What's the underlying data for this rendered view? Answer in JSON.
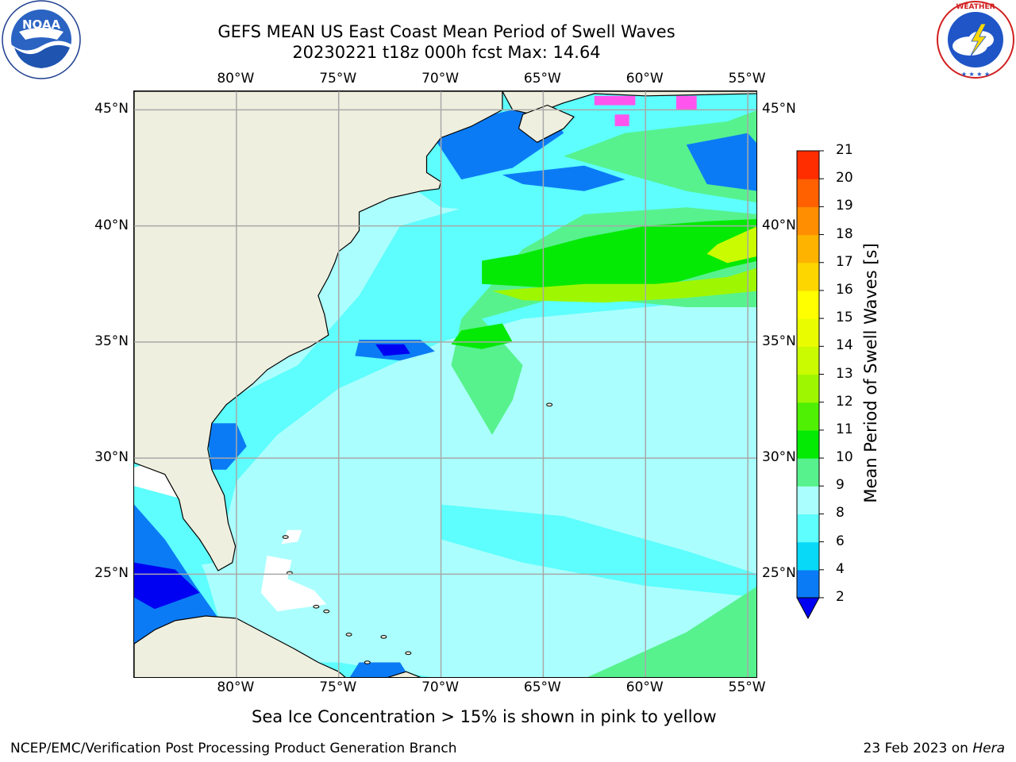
{
  "title_line1": "GEFS MEAN US East Coast Mean Period of Swell Waves",
  "title_line2": "20230221 t18z 000h fcst   Max: 14.64",
  "logos": {
    "left": {
      "name": "NOAA",
      "text": "NOAA",
      "ring_text": "NATIONAL OCEANIC AND ATMOSPHERIC ADMINISTRATION · U.S. DEPARTMENT OF COMMERCE"
    },
    "right": {
      "name": "National Weather Service",
      "ring_text": "NATIONAL WEATHER SERVICE"
    }
  },
  "map": {
    "lon_min": -85,
    "lon_max": -54.5,
    "lat_min": 20.5,
    "lat_max": 45.8,
    "lon_ticks": [
      {
        "value": -80,
        "label": "80°W"
      },
      {
        "value": -75,
        "label": "75°W"
      },
      {
        "value": -70,
        "label": "70°W"
      },
      {
        "value": -65,
        "label": "65°W"
      },
      {
        "value": -60,
        "label": "60°W"
      },
      {
        "value": -55,
        "label": "55°W"
      }
    ],
    "lat_ticks": [
      {
        "value": 45,
        "label": "45°N"
      },
      {
        "value": 40,
        "label": "40°N"
      },
      {
        "value": 35,
        "label": "35°N"
      },
      {
        "value": 30,
        "label": "30°N"
      },
      {
        "value": 25,
        "label": "25°N"
      }
    ],
    "grid": true,
    "colors": {
      "land": "#efefdf",
      "ocean_base": "#aafffe",
      "coast": "#000000",
      "grid": "#a8a8a8"
    }
  },
  "colorbar": {
    "label": "Mean Period of Swell Waves [s]",
    "ticks": [
      "2",
      "4",
      "6",
      "8",
      "9",
      "10",
      "11",
      "12",
      "13",
      "14",
      "15",
      "16",
      "17",
      "18",
      "19",
      "20",
      "21"
    ],
    "colors": [
      "#0b7bf5",
      "#07d9f7",
      "#5dfefd",
      "#aafffe",
      "#57f28e",
      "#05ea05",
      "#4ff003",
      "#9ef701",
      "#cafb00",
      "#eafc00",
      "#ffff00",
      "#fdd600",
      "#fdb300",
      "#ff8e00",
      "#ff6000",
      "#ff2d00"
    ],
    "under_color": "#0000f2",
    "extend": "min"
  },
  "ice_note": "Sea Ice Concentration > 15% is shown in pink to yellow",
  "footer_left": "NCEP/EMC/Verification Post Processing Product Generation Branch",
  "footer_right_date": "23 Feb 2023 on",
  "footer_right_host": "Hera"
}
